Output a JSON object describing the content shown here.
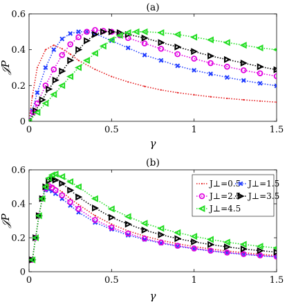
{
  "chart_data": [
    {
      "type": "line",
      "title": "(a)",
      "xlabel": "γ",
      "ylabel": "𝒥P",
      "xlim": [
        0,
        1.5
      ],
      "ylim": [
        0,
        0.6
      ],
      "xticks": [
        0,
        0.5,
        1,
        1.5
      ],
      "xtick_labels": [
        "0",
        "0.5",
        "1",
        "1.5"
      ],
      "yticks": [
        0,
        0.2,
        0.4,
        0.6
      ],
      "ytick_labels": [
        "0",
        "0.2",
        "0.4",
        "0.6"
      ],
      "grid": false,
      "series": [
        {
          "name": "J⊥=0.5",
          "color": "#e41a1c",
          "marker": "dot",
          "x": [
            0,
            0.02,
            0.05,
            0.1,
            0.15,
            0.2,
            0.25,
            0.3,
            0.4,
            0.5,
            0.6,
            0.7,
            0.8,
            0.9,
            1.0,
            1.1,
            1.2,
            1.3,
            1.4,
            1.5
          ],
          "y": [
            0,
            0.14,
            0.3,
            0.4,
            0.425,
            0.405,
            0.375,
            0.34,
            0.29,
            0.25,
            0.22,
            0.195,
            0.175,
            0.16,
            0.148,
            0.137,
            0.128,
            0.12,
            0.113,
            0.107
          ]
        },
        {
          "name": "J⊥=1.5",
          "color": "#1f3cff",
          "marker": "x",
          "x": [
            0,
            0.02,
            0.05,
            0.1,
            0.15,
            0.2,
            0.25,
            0.3,
            0.35,
            0.4,
            0.5,
            0.6,
            0.7,
            0.8,
            0.9,
            1.0,
            1.1,
            1.2,
            1.3,
            1.4,
            1.5
          ],
          "y": [
            0,
            0.06,
            0.16,
            0.3,
            0.4,
            0.46,
            0.49,
            0.5,
            0.5,
            0.49,
            0.45,
            0.41,
            0.37,
            0.34,
            0.31,
            0.285,
            0.265,
            0.245,
            0.228,
            0.212,
            0.198
          ]
        },
        {
          "name": "J⊥=2.5",
          "color": "#e000e0",
          "marker": "circle",
          "x": [
            0,
            0.025,
            0.05,
            0.1,
            0.15,
            0.2,
            0.25,
            0.3,
            0.35,
            0.4,
            0.45,
            0.5,
            0.55,
            0.6,
            0.7,
            0.8,
            0.9,
            1.0,
            1.1,
            1.2,
            1.3,
            1.4,
            1.5
          ],
          "y": [
            0,
            0.05,
            0.1,
            0.2,
            0.29,
            0.37,
            0.43,
            0.47,
            0.5,
            0.51,
            0.505,
            0.5,
            0.48,
            0.465,
            0.435,
            0.405,
            0.375,
            0.35,
            0.325,
            0.305,
            0.285,
            0.268,
            0.252
          ]
        },
        {
          "name": "J⊥=3.5",
          "color": "#000000",
          "marker": "triangle-right",
          "x": [
            0,
            0.04,
            0.08,
            0.12,
            0.16,
            0.2,
            0.25,
            0.3,
            0.35,
            0.4,
            0.45,
            0.5,
            0.55,
            0.6,
            0.7,
            0.8,
            0.9,
            1.0,
            1.1,
            1.2,
            1.3,
            1.4,
            1.5
          ],
          "y": [
            0,
            0.06,
            0.12,
            0.18,
            0.23,
            0.28,
            0.34,
            0.4,
            0.45,
            0.485,
            0.5,
            0.5,
            0.495,
            0.485,
            0.465,
            0.44,
            0.415,
            0.39,
            0.365,
            0.345,
            0.325,
            0.305,
            0.288
          ]
        },
        {
          "name": "J⊥=4.5",
          "color": "#22dd22",
          "marker": "triangle-left",
          "x": [
            0,
            0.05,
            0.1,
            0.15,
            0.2,
            0.25,
            0.3,
            0.35,
            0.4,
            0.45,
            0.5,
            0.55,
            0.6,
            0.65,
            0.7,
            0.8,
            0.9,
            1.0,
            1.1,
            1.2,
            1.3,
            1.4,
            1.5
          ],
          "y": [
            0,
            0.05,
            0.1,
            0.15,
            0.2,
            0.25,
            0.3,
            0.34,
            0.38,
            0.42,
            0.455,
            0.48,
            0.495,
            0.5,
            0.5,
            0.495,
            0.485,
            0.47,
            0.455,
            0.44,
            0.425,
            0.41,
            0.4
          ]
        }
      ]
    },
    {
      "type": "line",
      "title": "(b)",
      "xlabel": "γ",
      "ylabel": "𝒥P",
      "xlim": [
        0,
        1.5
      ],
      "ylim": [
        0,
        0.6
      ],
      "xticks": [
        0,
        0.5,
        1,
        1.5
      ],
      "xtick_labels": [
        "0",
        "0.5",
        "1",
        "1.5"
      ],
      "yticks": [
        0,
        0.2,
        0.4,
        0.6
      ],
      "ytick_labels": [
        "0",
        "0.2",
        "0.4",
        "0.6"
      ],
      "grid": false,
      "legend": "top-right",
      "series": [
        {
          "name": "J⊥=0.5",
          "color": "#e41a1c",
          "marker": "dot",
          "x": [
            0.02,
            0.04,
            0.06,
            0.08,
            0.1,
            0.12,
            0.14,
            0.16,
            0.2,
            0.25,
            0.3,
            0.4,
            0.5,
            0.6,
            0.7,
            0.8,
            0.9,
            1.0,
            1.1,
            1.2,
            1.3,
            1.4,
            1.5
          ],
          "y": [
            0.07,
            0.2,
            0.33,
            0.43,
            0.49,
            0.51,
            0.505,
            0.495,
            0.47,
            0.43,
            0.395,
            0.33,
            0.28,
            0.24,
            0.21,
            0.185,
            0.165,
            0.148,
            0.134,
            0.122,
            0.112,
            0.103,
            0.095
          ]
        },
        {
          "name": "J⊥=1.5",
          "color": "#1f3cff",
          "marker": "x",
          "x": [
            0.02,
            0.04,
            0.06,
            0.08,
            0.1,
            0.12,
            0.14,
            0.16,
            0.2,
            0.25,
            0.3,
            0.4,
            0.5,
            0.6,
            0.7,
            0.8,
            0.9,
            1.0,
            1.1,
            1.2,
            1.3,
            1.4,
            1.5
          ],
          "y": [
            0.07,
            0.2,
            0.33,
            0.43,
            0.48,
            0.485,
            0.475,
            0.46,
            0.43,
            0.39,
            0.35,
            0.29,
            0.25,
            0.215,
            0.19,
            0.168,
            0.15,
            0.135,
            0.122,
            0.111,
            0.102,
            0.094,
            0.088
          ]
        },
        {
          "name": "J⊥=2.5",
          "color": "#e000e0",
          "marker": "circle",
          "x": [
            0.02,
            0.04,
            0.06,
            0.08,
            0.1,
            0.12,
            0.14,
            0.16,
            0.2,
            0.25,
            0.3,
            0.4,
            0.5,
            0.6,
            0.7,
            0.8,
            0.9,
            1.0,
            1.1,
            1.2,
            1.3,
            1.4,
            1.5
          ],
          "y": [
            0.07,
            0.2,
            0.33,
            0.43,
            0.49,
            0.505,
            0.495,
            0.48,
            0.45,
            0.41,
            0.37,
            0.305,
            0.26,
            0.225,
            0.195,
            0.172,
            0.153,
            0.137,
            0.124,
            0.113,
            0.104,
            0.096,
            0.089
          ]
        },
        {
          "name": "J⊥=3.5",
          "color": "#000000",
          "marker": "triangle-right",
          "x": [
            0.02,
            0.04,
            0.06,
            0.08,
            0.1,
            0.12,
            0.14,
            0.16,
            0.2,
            0.25,
            0.3,
            0.4,
            0.5,
            0.6,
            0.7,
            0.8,
            0.9,
            1.0,
            1.1,
            1.2,
            1.3,
            1.4,
            1.5
          ],
          "y": [
            0.07,
            0.2,
            0.33,
            0.43,
            0.5,
            0.535,
            0.545,
            0.54,
            0.52,
            0.48,
            0.44,
            0.375,
            0.32,
            0.28,
            0.245,
            0.218,
            0.195,
            0.176,
            0.16,
            0.146,
            0.134,
            0.124,
            0.115
          ]
        },
        {
          "name": "J⊥=4.5",
          "color": "#22dd22",
          "marker": "triangle-left",
          "x": [
            0.02,
            0.04,
            0.06,
            0.08,
            0.1,
            0.12,
            0.14,
            0.16,
            0.2,
            0.25,
            0.3,
            0.4,
            0.5,
            0.6,
            0.7,
            0.8,
            0.9,
            1.0,
            1.1,
            1.2,
            1.3,
            1.4,
            1.5
          ],
          "y": [
            0.07,
            0.2,
            0.33,
            0.43,
            0.5,
            0.55,
            0.57,
            0.575,
            0.56,
            0.53,
            0.5,
            0.43,
            0.37,
            0.325,
            0.285,
            0.255,
            0.23,
            0.208,
            0.19,
            0.174,
            0.161,
            0.15,
            0.14
          ]
        }
      ]
    }
  ]
}
